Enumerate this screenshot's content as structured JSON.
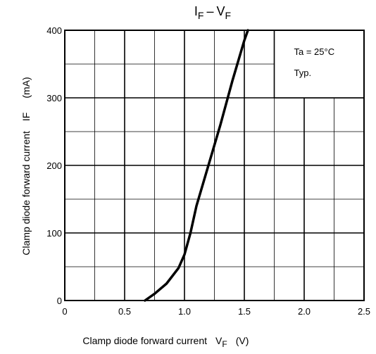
{
  "chart_data": {
    "type": "line",
    "title": {
      "main": "I",
      "main_sub": "F",
      "sep": "–",
      "second": "V",
      "second_sub": "F"
    },
    "xlabel": {
      "text": "Clamp diode forward current",
      "symbol": "V",
      "symbol_sub": "F",
      "unit": "(V)"
    },
    "ylabel": {
      "text": "Clamp diode forward current",
      "symbol": "IF",
      "unit": "(mA)"
    },
    "xlim": [
      0,
      2.5
    ],
    "ylim": [
      0,
      400
    ],
    "x_ticks": [
      "0",
      "0.5",
      "1.0",
      "1.5",
      "2.0",
      "2.5"
    ],
    "y_ticks": [
      "0",
      "100",
      "200",
      "300",
      "400"
    ],
    "grid": true,
    "annotation": {
      "line1": "Ta = 25°C",
      "line2": "Typ."
    },
    "series": [
      {
        "x": [
          0.67,
          0.75,
          0.85,
          0.95,
          1.0,
          1.05,
          1.1,
          1.2,
          1.3,
          1.4,
          1.5,
          1.53
        ],
        "y": [
          0,
          10,
          25,
          48,
          68,
          100,
          140,
          200,
          260,
          325,
          385,
          400
        ]
      }
    ]
  }
}
